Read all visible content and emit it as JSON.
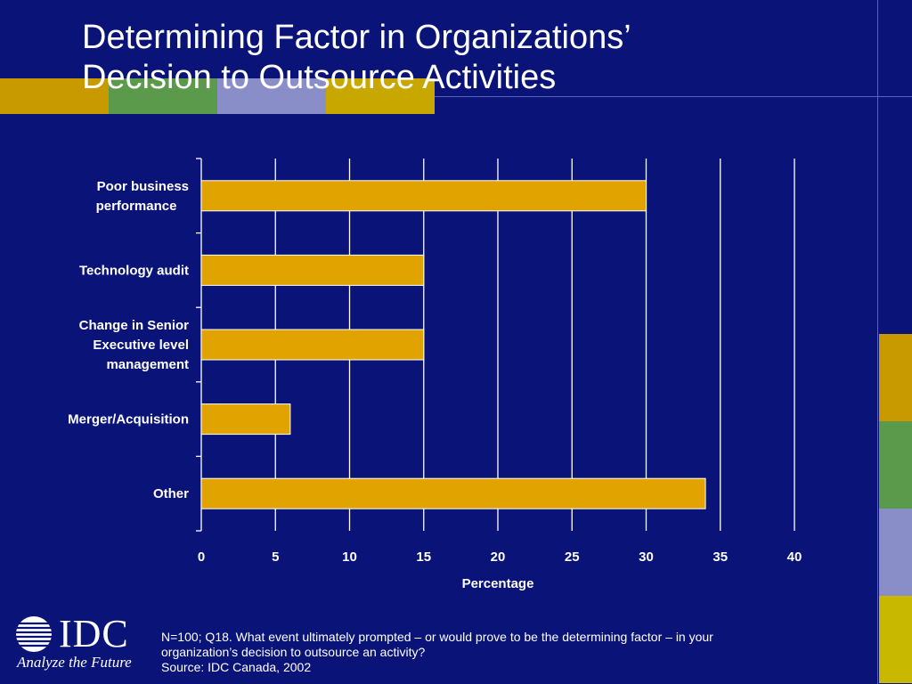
{
  "slide": {
    "title_line1": "Determining Factor in Organizations’",
    "title_line2": "Decision to Outsource Activities"
  },
  "colors": {
    "background": "#0a1478",
    "bar": "#e0a300",
    "grid": "#ffffff",
    "strip": [
      "#c89a00",
      "#5a9a4a",
      "#8a8ec8",
      "#c8a800"
    ]
  },
  "chart_data": {
    "type": "bar",
    "orientation": "horizontal",
    "categories": [
      [
        "Poor business",
        "performance"
      ],
      [
        "Technology audit"
      ],
      [
        "Change in Senior",
        "Executive level",
        "management"
      ],
      [
        "Merger/Acquisition"
      ],
      [
        "Other"
      ]
    ],
    "values": [
      30,
      15,
      15,
      6,
      34
    ],
    "xlabel": "Percentage",
    "ylabel": "",
    "xlim": [
      0,
      40
    ],
    "xticks": [
      "0",
      "5",
      "10",
      "15",
      "20",
      "25",
      "30",
      "35",
      "40"
    ],
    "grid": true
  },
  "logo": {
    "brand": "IDC",
    "tagline": "Analyze the Future",
    "icon": "globe-icon"
  },
  "footnote": {
    "line1": "N=100; Q18. What event ultimately prompted – or would prove to be the determining factor – in your",
    "line2": "organization’s decision to outsource an activity?",
    "line3": "Source: IDC Canada, 2002"
  }
}
